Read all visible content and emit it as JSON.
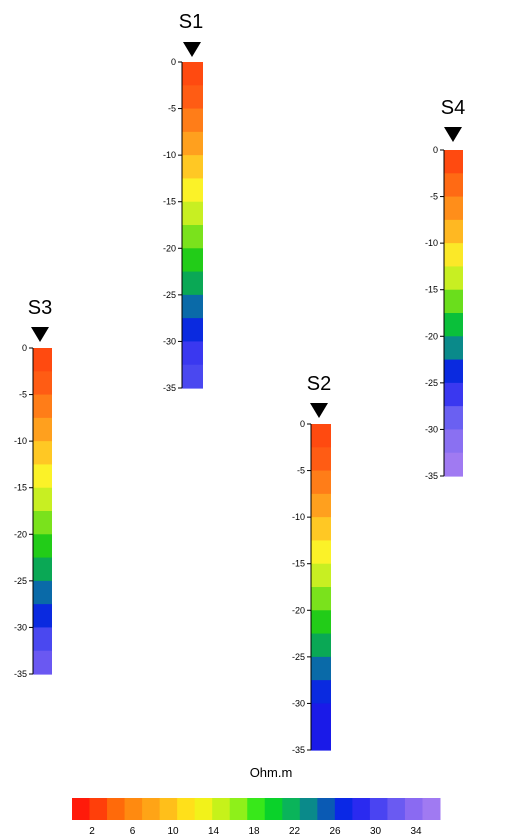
{
  "soundings": [
    {
      "label": "S1",
      "depth_ticks": [
        "0",
        "-5",
        "-10",
        "-15",
        "-20",
        "-25",
        "-30",
        "-35"
      ]
    },
    {
      "label": "S2",
      "depth_ticks": [
        "0",
        "-5",
        "-10",
        "-15",
        "-20",
        "-25",
        "-30",
        "-35"
      ]
    },
    {
      "label": "S3",
      "depth_ticks": [
        "0",
        "-5",
        "-10",
        "-15",
        "-20",
        "-25",
        "-30",
        "-35"
      ]
    },
    {
      "label": "S4",
      "depth_ticks": [
        "0",
        "-5",
        "-10",
        "-15",
        "-20",
        "-25",
        "-30",
        "-35"
      ]
    }
  ],
  "color_scale": {
    "unit": "Ohm.m",
    "tick_labels": [
      "2",
      "6",
      "10",
      "14",
      "18",
      "22",
      "26",
      "30",
      "34"
    ],
    "colors": [
      "#ff1a0a",
      "#ff3f0a",
      "#ff6a0a",
      "#ff8a10",
      "#ffa416",
      "#ffbf1a",
      "#ffe01a",
      "#f2f21a",
      "#c6f21a",
      "#8ef01a",
      "#38e81a",
      "#0ad22a",
      "#0ab45a",
      "#0a8a8a",
      "#0a5ab4",
      "#0a28e6",
      "#2a2af0",
      "#4a44f2",
      "#6a5af2",
      "#8a6af2",
      "#a07af2"
    ]
  }
}
